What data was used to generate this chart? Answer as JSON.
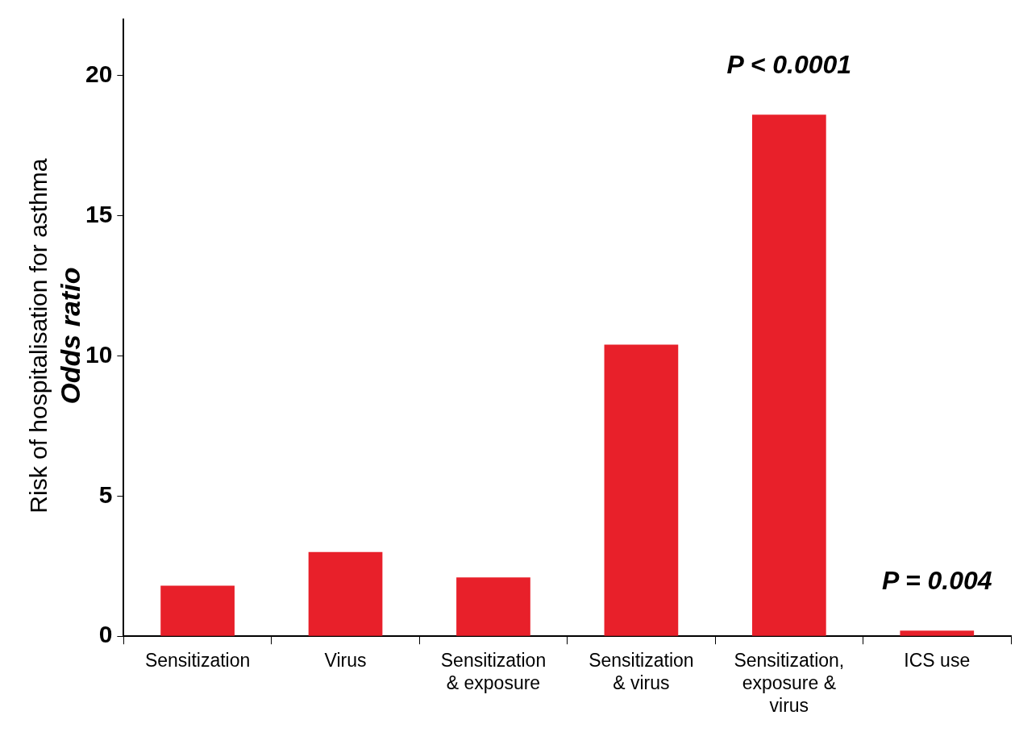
{
  "chart_data": {
    "type": "bar",
    "ylabel": [
      "Risk of hospitalisation for asthma",
      "Odds ratio"
    ],
    "categories": [
      "Sensitization",
      "Virus",
      "Sensitization & exposure",
      "Sensitization & virus",
      "Sensitization, exposure & virus",
      "ICS use"
    ],
    "values": [
      1.8,
      3.0,
      2.1,
      10.4,
      18.6,
      0.2
    ],
    "color": "#e8202a",
    "ylim": [
      0,
      22
    ],
    "yticks": [
      0,
      5,
      10,
      15,
      20
    ],
    "grid": false,
    "legend": false,
    "annotations": [
      {
        "text": "P < 0.0001",
        "x": "Sensitization, exposure & virus",
        "y": 18.6
      },
      {
        "text": "P = 0.004",
        "x": "ICS use",
        "y": 0.2
      }
    ]
  }
}
